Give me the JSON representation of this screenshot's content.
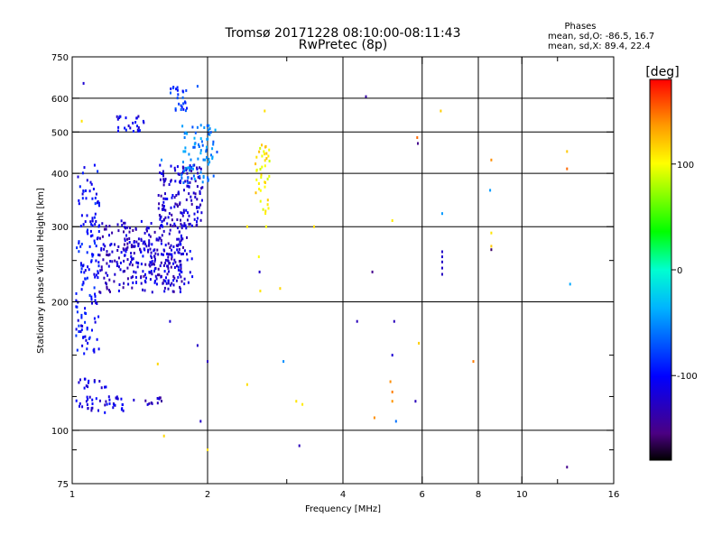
{
  "chart_data": {
    "type": "scatter",
    "title": "Tromsø 20171228 08:10:00-08:11:43",
    "subtitle": "RwPretec (8p)",
    "xlabel": "Frequency [MHz]",
    "ylabel": "Stationary phase Virtual Height [km]",
    "x_scale": "log",
    "y_scale": "log",
    "xlim": [
      1,
      16
    ],
    "ylim": [
      75,
      750
    ],
    "x_ticks": [
      1,
      2,
      4,
      6,
      8,
      10,
      16
    ],
    "y_ticks": [
      75,
      100,
      200,
      300,
      400,
      500,
      600,
      750
    ],
    "x_minor_ticks": [
      3,
      12
    ],
    "y_minor_ticks": [
      90,
      120,
      150,
      250
    ],
    "grid": true,
    "phase_stats": {
      "heading": "Phases",
      "line1": "mean, sd,O: -86.5, 16.7",
      "line2": "mean, sd,X:  89.4, 22.4"
    },
    "colorbar": {
      "label": "[deg]",
      "range": [
        -180,
        180
      ],
      "ticks": [
        100,
        0,
        -100
      ],
      "tick_labels": [
        "100",
        "0",
        "-100"
      ]
    },
    "clusters": [
      {
        "f": [
          1.02,
          1.15
        ],
        "h": [
          150,
          420
        ],
        "phase": -100,
        "n": 150
      },
      {
        "f": [
          1.15,
          1.8
        ],
        "h": [
          210,
          310
        ],
        "phase": -125,
        "n": 240
      },
      {
        "f": [
          1.3,
          1.85
        ],
        "h": [
          220,
          280
        ],
        "phase": -115,
        "n": 110
      },
      {
        "f": [
          1.55,
          1.95
        ],
        "h": [
          300,
          420
        ],
        "phase": -120,
        "n": 150
      },
      {
        "f": [
          1.75,
          2.1
        ],
        "h": [
          380,
          520
        ],
        "phase": -55,
        "n": 80
      },
      {
        "f": [
          1.65,
          1.8
        ],
        "h": [
          560,
          640
        ],
        "phase": -80,
        "n": 25
      },
      {
        "f": [
          1.25,
          1.45
        ],
        "h": [
          500,
          545
        ],
        "phase": -110,
        "n": 25
      },
      {
        "f": [
          1.02,
          1.3
        ],
        "h": [
          110,
          120
        ],
        "phase": -115,
        "n": 40
      },
      {
        "f": [
          1.02,
          1.2
        ],
        "h": [
          125,
          132
        ],
        "phase": -110,
        "n": 15
      },
      {
        "f": [
          1.35,
          1.6
        ],
        "h": [
          112,
          120
        ],
        "phase": -125,
        "n": 12
      },
      {
        "f": [
          2.55,
          2.75
        ],
        "h": [
          320,
          470
        ],
        "phase": 105,
        "n": 40
      }
    ],
    "points": [
      {
        "f": 1.06,
        "h": 650,
        "p": -120
      },
      {
        "f": 1.05,
        "h": 530,
        "p": 110
      },
      {
        "f": 1.9,
        "h": 640,
        "p": -70
      },
      {
        "f": 2.45,
        "h": 300,
        "p": 108
      },
      {
        "f": 2.6,
        "h": 255,
        "p": 100
      },
      {
        "f": 2.62,
        "h": 212,
        "p": 110
      },
      {
        "f": 2.68,
        "h": 560,
        "p": 112
      },
      {
        "f": 2.7,
        "h": 300,
        "p": 100
      },
      {
        "f": 2.9,
        "h": 215,
        "p": 115
      },
      {
        "f": 3.45,
        "h": 300,
        "p": 112
      },
      {
        "f": 2.61,
        "h": 235,
        "p": -125
      },
      {
        "f": 4.5,
        "h": 605,
        "p": -140
      },
      {
        "f": 5.85,
        "h": 485,
        "p": 150
      },
      {
        "f": 5.87,
        "h": 470,
        "p": -150
      },
      {
        "f": 6.6,
        "h": 560,
        "p": 118
      },
      {
        "f": 6.65,
        "h": 322,
        "p": -45
      },
      {
        "f": 6.65,
        "h": 262,
        "p": -125
      },
      {
        "f": 6.65,
        "h": 255,
        "p": -122
      },
      {
        "f": 6.65,
        "h": 248,
        "p": -126
      },
      {
        "f": 6.65,
        "h": 240,
        "p": -124
      },
      {
        "f": 6.65,
        "h": 232,
        "p": -128
      },
      {
        "f": 4.65,
        "h": 235,
        "p": -150
      },
      {
        "f": 5.15,
        "h": 310,
        "p": 108
      },
      {
        "f": 8.55,
        "h": 430,
        "p": 140
      },
      {
        "f": 8.5,
        "h": 365,
        "p": -45
      },
      {
        "f": 8.55,
        "h": 290,
        "p": 110
      },
      {
        "f": 8.55,
        "h": 270,
        "p": 120
      },
      {
        "f": 8.55,
        "h": 265,
        "p": -160
      },
      {
        "f": 12.6,
        "h": 450,
        "p": 120
      },
      {
        "f": 12.6,
        "h": 410,
        "p": 150
      },
      {
        "f": 12.8,
        "h": 220,
        "p": -40
      },
      {
        "f": 12.6,
        "h": 82,
        "p": -150
      },
      {
        "f": 4.3,
        "h": 180,
        "p": -130
      },
      {
        "f": 5.2,
        "h": 180,
        "p": -130
      },
      {
        "f": 5.15,
        "h": 150,
        "p": -120
      },
      {
        "f": 5.1,
        "h": 130,
        "p": 140
      },
      {
        "f": 5.15,
        "h": 123,
        "p": 145
      },
      {
        "f": 5.15,
        "h": 117,
        "p": 138
      },
      {
        "f": 5.25,
        "h": 105,
        "p": -60
      },
      {
        "f": 4.7,
        "h": 107,
        "p": 140
      },
      {
        "f": 5.9,
        "h": 160,
        "p": 118
      },
      {
        "f": 5.8,
        "h": 117,
        "p": -130
      },
      {
        "f": 7.8,
        "h": 145,
        "p": 145
      },
      {
        "f": 3.2,
        "h": 92,
        "p": -130
      },
      {
        "f": 2.45,
        "h": 128,
        "p": 112
      },
      {
        "f": 3.15,
        "h": 117,
        "p": 110
      },
      {
        "f": 3.25,
        "h": 115,
        "p": 108
      },
      {
        "f": 2.95,
        "h": 145,
        "p": -50
      },
      {
        "f": 2.0,
        "h": 90,
        "p": 112
      },
      {
        "f": 2.0,
        "h": 145,
        "p": -130
      },
      {
        "f": 1.93,
        "h": 105,
        "p": -125
      },
      {
        "f": 1.9,
        "h": 158,
        "p": -125
      },
      {
        "f": 1.65,
        "h": 180,
        "p": -120
      },
      {
        "f": 1.6,
        "h": 97,
        "p": 115
      },
      {
        "f": 1.55,
        "h": 143,
        "p": 115
      },
      {
        "f": 1.58,
        "h": 430,
        "p": -50
      }
    ]
  }
}
